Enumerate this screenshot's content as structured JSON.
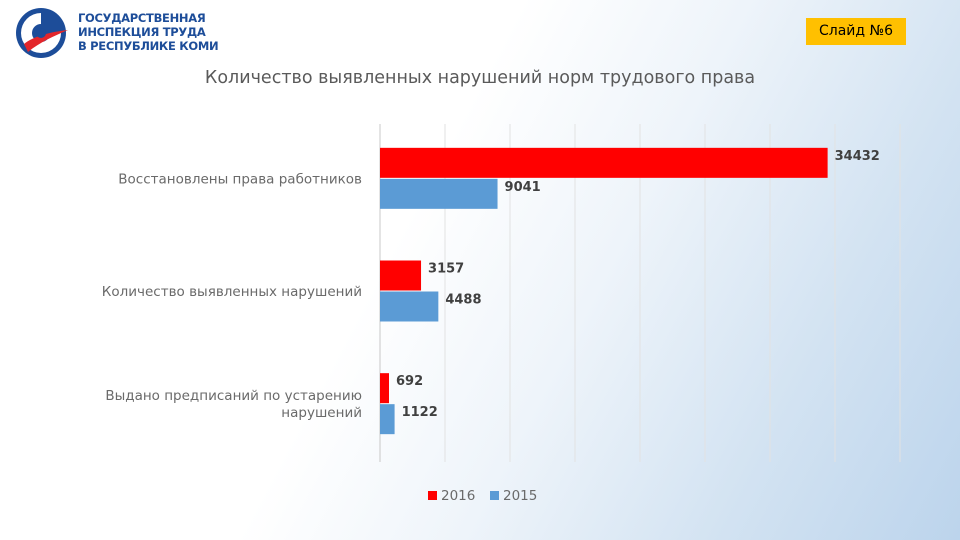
{
  "header": {
    "org_line1": "ГОСУДАРСТВЕННАЯ",
    "org_line2": "ИНСПЕКЦИЯ ТРУДА",
    "org_line3": "В РЕСПУБЛИКЕ КОМИ",
    "slide_label": "Слайд №6",
    "logo_icon": "state-labor-inspection-logo-icon"
  },
  "colors": {
    "series_2016": "#ff0000",
    "series_2015": "#5b9bd5",
    "badge": "#ffc000"
  },
  "chart_data": {
    "type": "bar",
    "orientation": "horizontal",
    "title": "Количество выявленных нарушений норм трудового права",
    "categories": [
      [
        "Восстановлены права работников"
      ],
      [
        "Количество выявленных нарушений"
      ],
      [
        "Выдано предписаний по устарению",
        "нарушений"
      ]
    ],
    "series": [
      {
        "name": "2016",
        "values": [
          34432,
          3157,
          692
        ]
      },
      {
        "name": "2015",
        "values": [
          9041,
          4488,
          1122
        ]
      }
    ],
    "xlim": [
      0,
      40000
    ],
    "grid": true,
    "legend": "bottom",
    "data_labels": true
  }
}
